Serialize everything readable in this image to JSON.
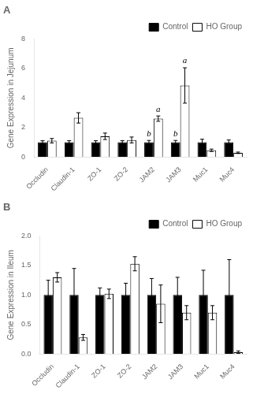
{
  "chart_data": [
    {
      "type": "bar",
      "title": "A",
      "ylabel": "Gene Expression in Jejunum",
      "categories": [
        "Occludin",
        "Claudin-1",
        "ZO-1",
        "ZO-2",
        "JAM2",
        "JAM3",
        "Muc1",
        "Muc4"
      ],
      "series": [
        {
          "name": "Control",
          "color": "#000000",
          "values": [
            1.0,
            1.0,
            1.0,
            1.0,
            1.0,
            1.0,
            1.0,
            1.0
          ],
          "errors": [
            0.1,
            0.1,
            0.1,
            0.1,
            0.12,
            0.12,
            0.2,
            0.15
          ]
        },
        {
          "name": "HO Group",
          "color": "#ffffff",
          "values": [
            1.1,
            2.65,
            1.4,
            1.15,
            2.6,
            4.85,
            0.45,
            0.28
          ],
          "errors": [
            0.15,
            0.35,
            0.22,
            0.2,
            0.18,
            1.2,
            0.08,
            0.05
          ]
        }
      ],
      "annotations": [
        {
          "text": "b",
          "category": "JAM2",
          "series": "Control"
        },
        {
          "text": "a",
          "category": "JAM2",
          "series": "HO Group"
        },
        {
          "text": "b",
          "category": "JAM3",
          "series": "Control"
        },
        {
          "text": "a",
          "category": "JAM3",
          "series": "HO Group"
        }
      ],
      "ylim": [
        0,
        8
      ],
      "yticks": [
        0,
        2,
        4,
        6,
        8
      ],
      "grid": false,
      "legend": "upper right"
    },
    {
      "type": "bar",
      "title": "B",
      "ylabel": "Gene Expression in Ileum",
      "categories": [
        "Occludin",
        "Claudin-1",
        "ZO-1",
        "ZO-2",
        "JAM2",
        "JAM3",
        "Muc1",
        "Muc4"
      ],
      "series": [
        {
          "name": "Control",
          "color": "#000000",
          "values": [
            1.0,
            1.0,
            1.0,
            1.0,
            1.0,
            1.0,
            1.0,
            1.0
          ],
          "errors": [
            0.25,
            0.45,
            0.12,
            0.2,
            0.28,
            0.3,
            0.42,
            0.6
          ]
        },
        {
          "name": "HO Group",
          "color": "#ffffff",
          "values": [
            1.3,
            0.28,
            1.02,
            1.53,
            0.85,
            0.7,
            0.7,
            0.03
          ],
          "errors": [
            0.08,
            0.05,
            0.08,
            0.12,
            0.32,
            0.12,
            0.12,
            0.02
          ]
        }
      ],
      "ylim": [
        0,
        2.0
      ],
      "yticks": [
        {
          "value": 0.0,
          "label": "0.0"
        },
        {
          "value": 0.5,
          "label": "0.5"
        },
        {
          "value": 1.0,
          "label": "1.0"
        },
        {
          "value": 1.5,
          "label": "1.5"
        },
        {
          "value": 2.0,
          "label": "2.0"
        }
      ],
      "grid": false,
      "legend": "upper right"
    }
  ]
}
